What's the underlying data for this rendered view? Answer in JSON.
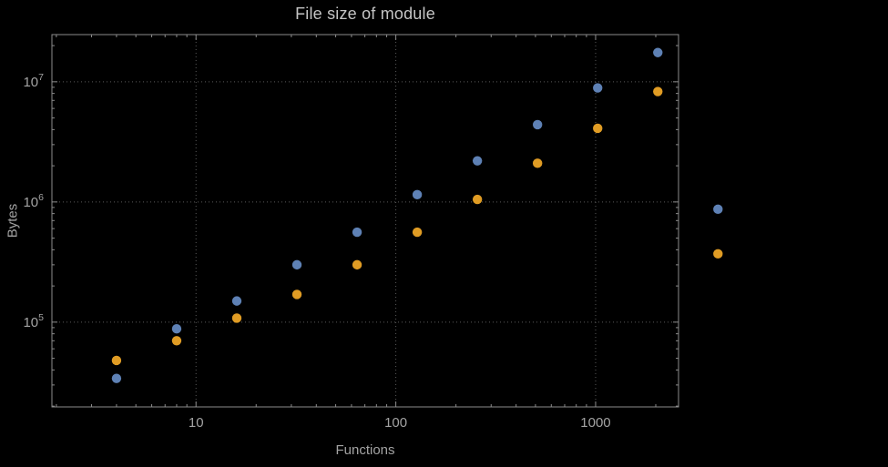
{
  "colors": {
    "background": "#000000",
    "frame": "#8c8c8c",
    "tick": "#8c8c8c",
    "grid": "#5a5a5a",
    "tick_label": "#a3a3a3",
    "title": "#c4c4c4"
  },
  "chart_data": {
    "type": "scatter",
    "title": "File size of module",
    "xlabel": "Functions",
    "ylabel": "Bytes",
    "xscale": "log",
    "yscale": "log",
    "grid": "dotted",
    "legend": null,
    "xlim": [
      1.9,
      2600
    ],
    "ylim": [
      19700,
      24700000
    ],
    "xticks": [
      10,
      100,
      1000
    ],
    "xtick_labels": [
      "10",
      "100",
      "1000"
    ],
    "yticks": [
      100000,
      1000000,
      10000000
    ],
    "ytick_labels": [
      {
        "mantissa": "10",
        "exponent": "5"
      },
      {
        "mantissa": "10",
        "exponent": "6"
      },
      {
        "mantissa": "10",
        "exponent": "7"
      }
    ],
    "x": [
      4,
      8,
      16,
      32,
      64,
      128,
      256,
      512,
      1024,
      2048,
      4096
    ],
    "series": [
      {
        "name": "series-blue",
        "color": "#5E81B5",
        "values": [
          34000,
          88000,
          150000,
          300000,
          560000,
          1150000,
          2200000,
          4400000,
          8900000,
          17500000,
          870000
        ]
      },
      {
        "name": "series-orange",
        "color": "#E09C24",
        "values": [
          48000,
          70000,
          108000,
          170000,
          300000,
          560000,
          1050000,
          2100000,
          4100000,
          8300000,
          370000
        ]
      }
    ]
  }
}
